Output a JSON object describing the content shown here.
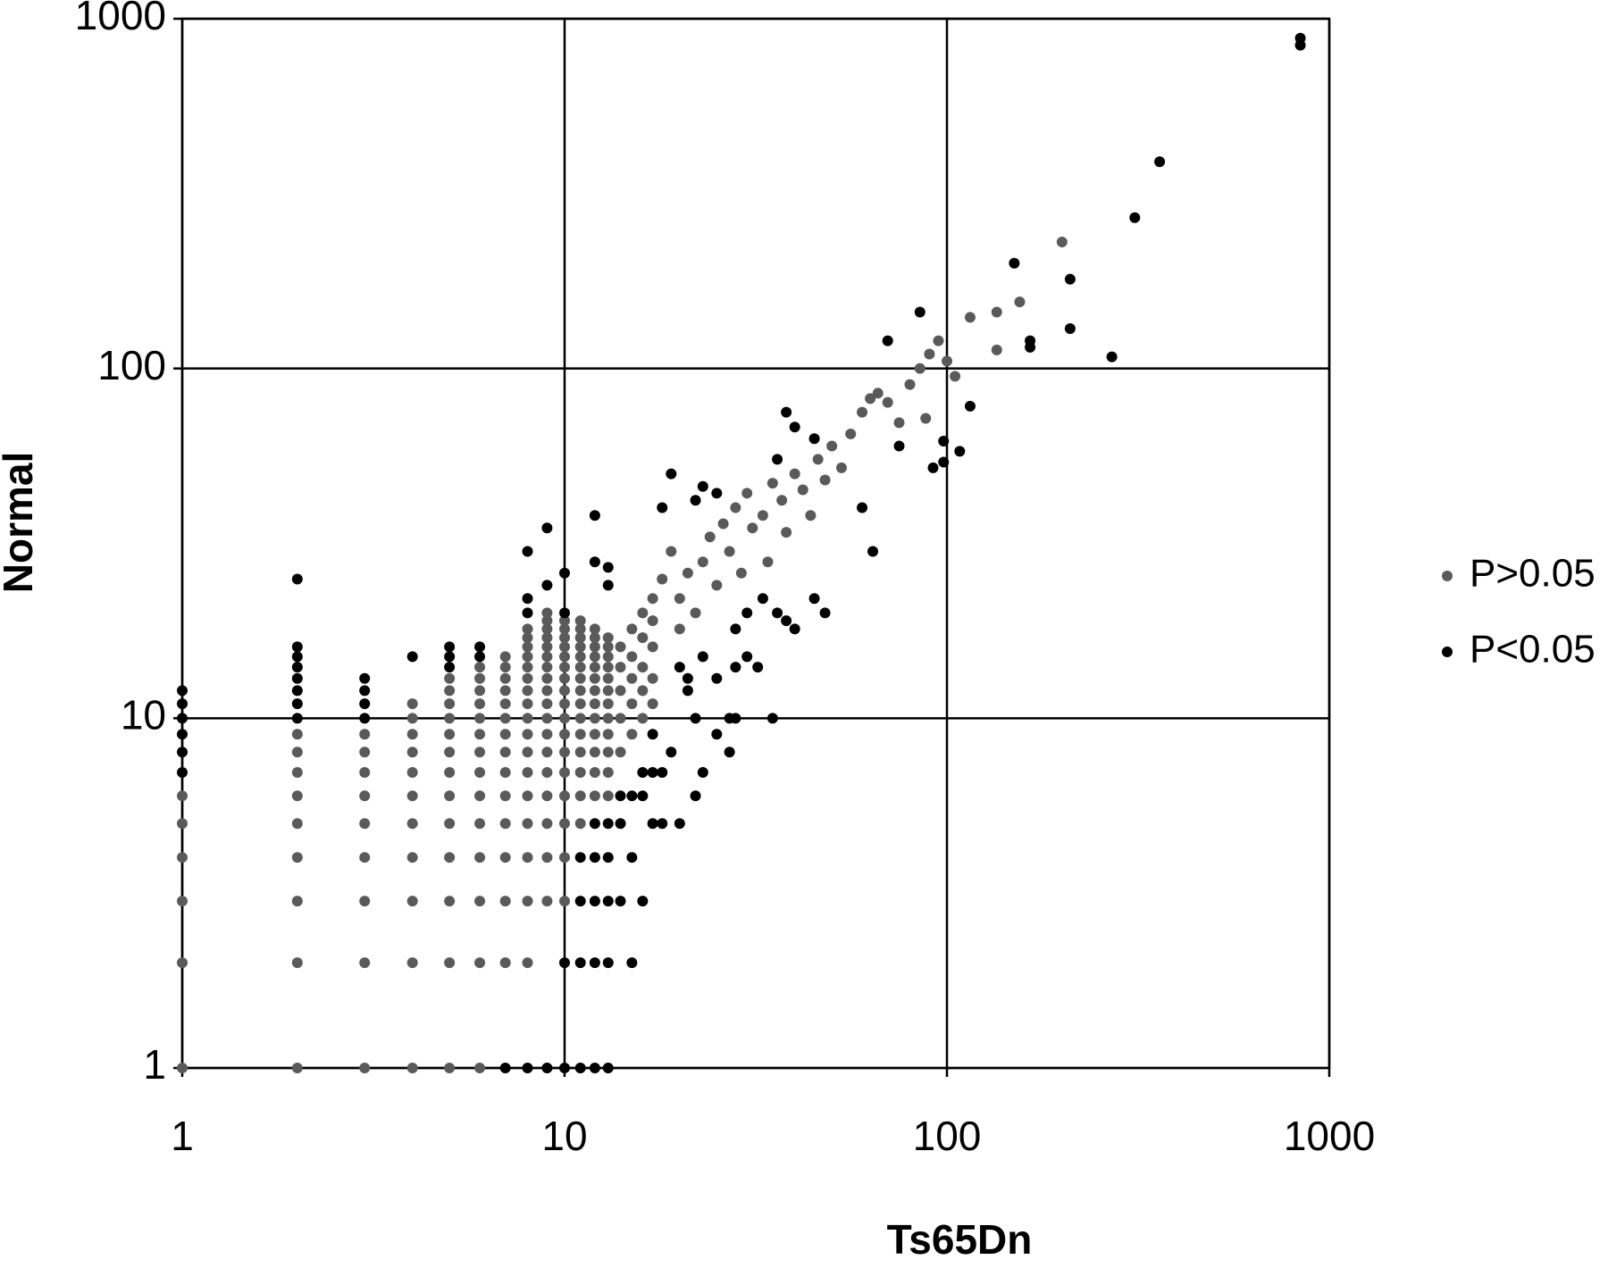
{
  "chart_data": {
    "type": "scatter",
    "xlabel": "Ts65Dn",
    "ylabel": "Normal",
    "xscale": "log",
    "yscale": "log",
    "xlim": [
      1,
      1000
    ],
    "ylim": [
      1,
      1000
    ],
    "xticks": [
      1,
      10,
      100,
      1000
    ],
    "yticks": [
      1,
      10,
      100,
      1000
    ],
    "grid": true,
    "legend": "right",
    "series": [
      {
        "name": "P>0.05",
        "color": "#5a5a5a",
        "x": [
          1,
          1,
          1,
          1,
          1,
          1,
          2,
          2,
          2,
          2,
          2,
          2,
          2,
          2,
          2,
          3,
          3,
          3,
          3,
          3,
          3,
          3,
          3,
          3,
          4,
          4,
          4,
          4,
          4,
          4,
          4,
          4,
          4,
          4,
          4,
          5,
          5,
          5,
          5,
          5,
          5,
          5,
          5,
          5,
          5,
          5,
          5,
          5,
          6,
          6,
          6,
          6,
          6,
          6,
          6,
          6,
          6,
          6,
          6,
          6,
          6,
          6,
          7,
          7,
          7,
          7,
          7,
          7,
          7,
          7,
          7,
          7,
          7,
          7,
          7,
          7,
          8,
          8,
          8,
          8,
          8,
          8,
          8,
          8,
          8,
          8,
          8,
          8,
          8,
          8,
          8,
          8,
          8,
          9,
          9,
          9,
          9,
          9,
          9,
          9,
          9,
          9,
          9,
          9,
          9,
          9,
          9,
          9,
          9,
          9,
          9,
          10,
          10,
          10,
          10,
          10,
          10,
          10,
          10,
          10,
          10,
          10,
          10,
          10,
          10,
          10,
          10,
          10,
          11,
          11,
          11,
          11,
          11,
          11,
          11,
          11,
          11,
          11,
          11,
          11,
          11,
          11,
          11,
          12,
          12,
          12,
          12,
          12,
          12,
          12,
          12,
          12,
          12,
          12,
          12,
          12,
          13,
          13,
          13,
          13,
          13,
          13,
          13,
          13,
          13,
          13,
          13,
          13,
          14,
          14,
          14,
          14,
          14,
          15,
          15,
          15,
          15,
          15,
          16,
          16,
          16,
          16,
          16,
          17,
          17,
          17,
          17,
          17,
          18,
          19,
          20,
          20,
          21,
          22,
          23,
          24,
          25,
          26,
          27,
          28,
          29,
          30,
          31,
          33,
          34,
          35,
          37,
          38,
          40,
          42,
          44,
          46,
          48,
          50,
          53,
          56,
          60,
          63,
          66,
          70,
          75,
          80,
          85,
          90,
          95,
          100,
          105,
          115,
          135,
          155,
          135,
          200,
          88
        ],
        "values": [
          1,
          2,
          3,
          4,
          5,
          6,
          1,
          2,
          3,
          4,
          5,
          6,
          7,
          8,
          9,
          1,
          2,
          3,
          4,
          5,
          6,
          7,
          8,
          9,
          1,
          2,
          3,
          4,
          5,
          6,
          7,
          8,
          9,
          10,
          11,
          1,
          2,
          3,
          4,
          5,
          6,
          7,
          8,
          9,
          10,
          11,
          12,
          13,
          1,
          2,
          3,
          4,
          5,
          6,
          7,
          8,
          9,
          10,
          11,
          12,
          13,
          14,
          2,
          3,
          4,
          5,
          6,
          7,
          8,
          9,
          10,
          11,
          12,
          13,
          14,
          15,
          2,
          3,
          4,
          5,
          6,
          7,
          8,
          9,
          10,
          11,
          12,
          13,
          14,
          15,
          16,
          17,
          18,
          3,
          4,
          5,
          6,
          7,
          8,
          9,
          10,
          11,
          12,
          13,
          14,
          15,
          16,
          17,
          18,
          19,
          20,
          3,
          4,
          5,
          6,
          7,
          8,
          9,
          10,
          11,
          12,
          13,
          14,
          15,
          16,
          17,
          18,
          19,
          5,
          6,
          7,
          8,
          9,
          10,
          11,
          12,
          13,
          14,
          15,
          16,
          17,
          18,
          19,
          6,
          7,
          8,
          9,
          10,
          11,
          12,
          13,
          14,
          15,
          16,
          17,
          18,
          6,
          7,
          8,
          9,
          10,
          11,
          12,
          13,
          14,
          15,
          16,
          17,
          8,
          10,
          12,
          14,
          16,
          9,
          11,
          13,
          15,
          18,
          10,
          12,
          14,
          17,
          20,
          11,
          13,
          16,
          19,
          22,
          25,
          30,
          22,
          18,
          26,
          20,
          28,
          33,
          24,
          36,
          30,
          40,
          26,
          44,
          35,
          38,
          28,
          47,
          42,
          34,
          50,
          45,
          38,
          55,
          48,
          60,
          52,
          65,
          75,
          82,
          85,
          80,
          70,
          90,
          100,
          110,
          120,
          105,
          95,
          140,
          145,
          155,
          113,
          230,
          72
        ]
      },
      {
        "name": "P<0.05",
        "color": "#000000",
        "x": [
          1,
          1,
          1,
          1,
          1,
          1,
          2,
          2,
          2,
          2,
          2,
          2,
          2,
          2,
          3,
          3,
          3,
          3,
          4,
          5,
          5,
          5,
          6,
          6,
          7,
          8,
          8,
          8,
          8,
          9,
          9,
          9,
          10,
          10,
          10,
          10,
          11,
          11,
          11,
          11,
          12,
          12,
          12,
          12,
          12,
          12,
          12,
          13,
          13,
          13,
          13,
          13,
          13,
          13,
          14,
          14,
          14,
          15,
          15,
          15,
          16,
          16,
          16,
          17,
          17,
          17,
          18,
          18,
          18,
          19,
          19,
          20,
          20,
          21,
          21,
          22,
          22,
          22,
          23,
          23,
          23,
          25,
          25,
          25,
          27,
          27,
          28,
          28,
          28,
          30,
          30,
          32,
          33,
          35,
          36,
          36,
          38,
          38,
          40,
          40,
          45,
          45,
          48,
          60,
          64,
          70,
          75,
          85,
          92,
          98,
          98,
          108,
          115,
          150,
          165,
          165,
          210,
          210,
          270,
          310,
          360,
          840,
          840
        ],
        "values": [
          7,
          8,
          9,
          10,
          11,
          12,
          10,
          11,
          12,
          13,
          14,
          15,
          16,
          25,
          10,
          11,
          12,
          13,
          15,
          14,
          15,
          16,
          15,
          16,
          1,
          1,
          20,
          22,
          30,
          1,
          35,
          24,
          1,
          2,
          20,
          26,
          1,
          2,
          3,
          4,
          1,
          2,
          3,
          4,
          5,
          38,
          28,
          1,
          2,
          3,
          4,
          5,
          24,
          27,
          3,
          5,
          6,
          2,
          4,
          6,
          3,
          6,
          7,
          5,
          7,
          9,
          7,
          40,
          5,
          8,
          50,
          5,
          14,
          13,
          12,
          6,
          10,
          42,
          7,
          15,
          46,
          9,
          13,
          44,
          8,
          10,
          14,
          10,
          18,
          15,
          20,
          14,
          22,
          10,
          55,
          20,
          75,
          19,
          68,
          18,
          63,
          22,
          20,
          40,
          30,
          120,
          60,
          145,
          52,
          62,
          54,
          58,
          78,
          200,
          120,
          115,
          180,
          130,
          108,
          270,
          390,
          840,
          880
        ]
      }
    ]
  }
}
